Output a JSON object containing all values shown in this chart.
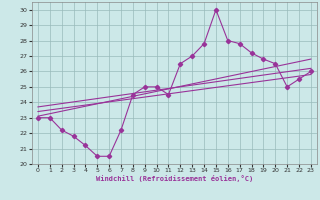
{
  "x": [
    0,
    1,
    2,
    3,
    4,
    5,
    6,
    7,
    8,
    9,
    10,
    11,
    12,
    13,
    14,
    15,
    16,
    17,
    18,
    19,
    20,
    21,
    22,
    23
  ],
  "y_main": [
    23,
    23,
    22.2,
    21.8,
    21.2,
    20.5,
    20.5,
    22.2,
    24.5,
    25,
    25,
    24.5,
    26.5,
    27,
    27.8,
    30,
    28,
    27.8,
    27.2,
    26.8,
    26.5,
    25,
    25.5,
    26
  ],
  "trend1_x": [
    0,
    23
  ],
  "trend1_y": [
    23.1,
    26.8
  ],
  "trend2_x": [
    0,
    23
  ],
  "trend2_y": [
    23.4,
    25.8
  ],
  "trend3_x": [
    0,
    23
  ],
  "trend3_y": [
    23.7,
    26.2
  ],
  "line_color": "#993399",
  "bg_color": "#cce8e8",
  "grid_color": "#99bbbb",
  "xlabel": "Windchill (Refroidissement éolien,°C)",
  "ylim": [
    20,
    30.5
  ],
  "xlim": [
    -0.5,
    23.5
  ],
  "yticks": [
    20,
    21,
    22,
    23,
    24,
    25,
    26,
    27,
    28,
    29,
    30
  ],
  "xticks": [
    0,
    1,
    2,
    3,
    4,
    5,
    6,
    7,
    8,
    9,
    10,
    11,
    12,
    13,
    14,
    15,
    16,
    17,
    18,
    19,
    20,
    21,
    22,
    23
  ]
}
